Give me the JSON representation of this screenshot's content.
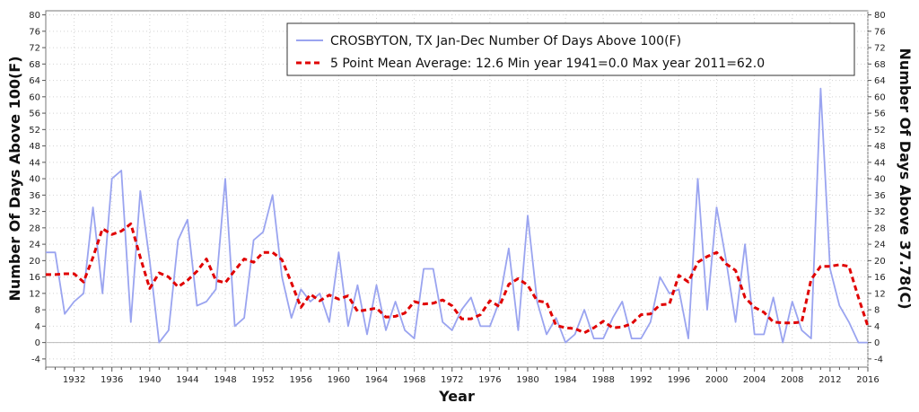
{
  "chart_data": {
    "type": "line",
    "xlabel": "Year",
    "ylabel_left": "Number Of Days Above 100(F)",
    "ylabel_right": "Number Of Days Above 37.78(C)",
    "xlim": [
      1929,
      2016
    ],
    "ylim": [
      -6,
      81
    ],
    "x_ticks": [
      1932,
      1936,
      1940,
      1944,
      1948,
      1952,
      1956,
      1960,
      1964,
      1968,
      1972,
      1976,
      1980,
      1984,
      1988,
      1992,
      1996,
      2000,
      2004,
      2008,
      2012,
      2016
    ],
    "y_ticks": [
      -4,
      0,
      4,
      8,
      12,
      16,
      20,
      24,
      28,
      32,
      36,
      40,
      44,
      48,
      52,
      56,
      60,
      64,
      68,
      72,
      76,
      80
    ],
    "grid": true,
    "legend_position": "top-right",
    "series": [
      {
        "name": "CROSBYTON, TX  Jan-Dec  Number Of Days Above 100(F)",
        "color": "#9aa4f0",
        "style": "solid",
        "x": [
          1929,
          1930,
          1931,
          1932,
          1933,
          1934,
          1935,
          1936,
          1937,
          1938,
          1939,
          1940,
          1941,
          1942,
          1943,
          1944,
          1945,
          1946,
          1947,
          1948,
          1949,
          1950,
          1951,
          1952,
          1953,
          1954,
          1955,
          1956,
          1957,
          1958,
          1959,
          1960,
          1961,
          1962,
          1963,
          1964,
          1965,
          1966,
          1967,
          1968,
          1969,
          1970,
          1971,
          1972,
          1973,
          1974,
          1975,
          1976,
          1977,
          1978,
          1979,
          1980,
          1981,
          1982,
          1983,
          1984,
          1985,
          1986,
          1987,
          1988,
          1989,
          1990,
          1991,
          1992,
          1993,
          1994,
          1995,
          1996,
          1997,
          1998,
          1999,
          2000,
          2001,
          2002,
          2003,
          2004,
          2005,
          2006,
          2007,
          2008,
          2009,
          2010,
          2011,
          2012,
          2013,
          2014,
          2015,
          2016
        ],
        "values": [
          22,
          22,
          7,
          10,
          12,
          33,
          12,
          40,
          42,
          5,
          37,
          20,
          0,
          3,
          25,
          30,
          9,
          10,
          13,
          40,
          4,
          6,
          25,
          27,
          36,
          16,
          6,
          13,
          10,
          12,
          5,
          22,
          4,
          14,
          2,
          14,
          3,
          10,
          3,
          1,
          18,
          18,
          5,
          3,
          8,
          11,
          4,
          4,
          10,
          23,
          3,
          31,
          10,
          2,
          6,
          0,
          2,
          8,
          1,
          1,
          6,
          10,
          1,
          1,
          5,
          16,
          12,
          13,
          1,
          40,
          8,
          33,
          20,
          5,
          24,
          2,
          2,
          11,
          0,
          10,
          3,
          1,
          62,
          18,
          9,
          5,
          0,
          0
        ]
      },
      {
        "name": "5 Point Mean  Average: 12.6  Min year 1941=0.0  Max year 2011=62.0",
        "color": "#e00000",
        "style": "dashed",
        "x": [
          1929,
          1930,
          1931,
          1932,
          1933,
          1934,
          1935,
          1936,
          1937,
          1938,
          1939,
          1940,
          1941,
          1942,
          1943,
          1944,
          1945,
          1946,
          1947,
          1948,
          1949,
          1950,
          1951,
          1952,
          1953,
          1954,
          1955,
          1956,
          1957,
          1958,
          1959,
          1960,
          1961,
          1962,
          1963,
          1964,
          1965,
          1966,
          1967,
          1968,
          1969,
          1970,
          1971,
          1972,
          1973,
          1974,
          1975,
          1976,
          1977,
          1978,
          1979,
          1980,
          1981,
          1982,
          1983,
          1984,
          1985,
          1986,
          1987,
          1988,
          1989,
          1990,
          1991,
          1992,
          1993,
          1994,
          1995,
          1996,
          1997,
          1998,
          1999,
          2000,
          2001,
          2002,
          2003,
          2004,
          2005,
          2006,
          2007,
          2008,
          2009,
          2010,
          2011,
          2012,
          2013,
          2014,
          2015,
          2016
        ],
        "values": [
          16.6,
          16.6,
          16.8,
          16.8,
          14.8,
          20.8,
          27.8,
          26.4,
          27.2,
          29,
          20.8,
          13.2,
          17,
          16,
          13.6,
          15.2,
          17.4,
          20.4,
          15.2,
          14.6,
          17.6,
          20.4,
          19.6,
          22,
          22,
          20.2,
          14.6,
          8.6,
          11.8,
          10.2,
          11.6,
          10.6,
          11.4,
          7.6,
          8,
          8.4,
          6.2,
          6.4,
          7.2,
          10,
          9.4,
          9.6,
          10.4,
          9,
          5.8,
          5.8,
          6.8,
          10.2,
          8.8,
          14.2,
          15.6,
          14,
          10.2,
          9.8,
          4.2,
          3.6,
          3.4,
          2.4,
          3.6,
          5.2,
          3.6,
          3.8,
          4.6,
          6.8,
          7,
          9.2,
          9.4,
          16.4,
          14.8,
          19.6,
          21,
          22,
          19.2,
          17.6,
          11,
          8.6,
          7.4,
          5,
          4.8,
          4.8,
          5,
          15.4,
          18.6,
          18.6,
          19,
          18.6,
          11,
          4
        ]
      }
    ]
  }
}
